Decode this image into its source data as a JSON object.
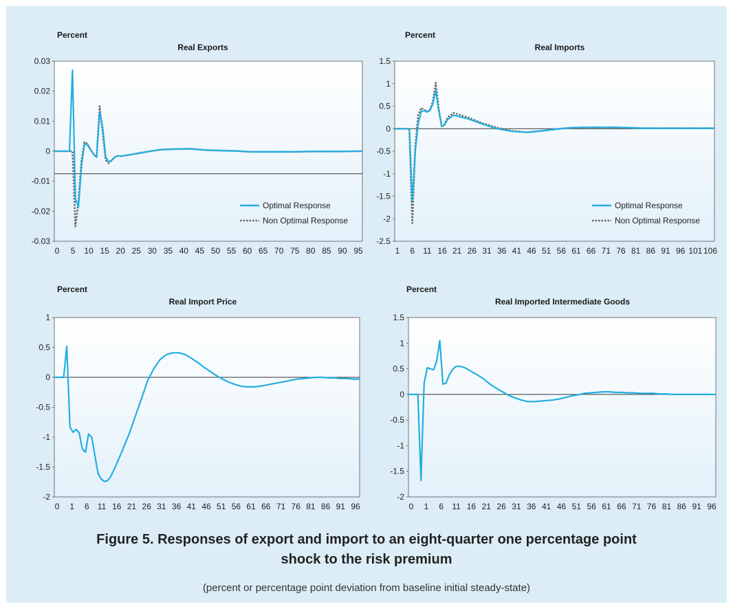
{
  "figure": {
    "title_line1": "Figure 5.  Responses of export and import to an eight-quarter one percentage point",
    "title_line2": "shock to the risk premium",
    "subtitle": "(percent or percentage point deviation from baseline initial steady-state)"
  },
  "colors": {
    "optimal": "#22aee0",
    "non_optimal": "#666666",
    "background": "#dcedf7",
    "plot_gradient_top": "#ffffff",
    "plot_gradient_bottom": "#e3f1fa"
  },
  "chart_data": [
    {
      "type": "line",
      "title": "Real Exports",
      "ylabel": "Percent",
      "ylim": [
        -0.03,
        0.03
      ],
      "yticks": [
        "0.03",
        "0.02",
        "0.01",
        "0",
        "-0.01",
        "-0.02",
        "-0.03"
      ],
      "xlim": [
        -5,
        97
      ],
      "xticks": [
        "0",
        "5",
        "10",
        "15",
        "20",
        "25",
        "30",
        "35",
        "40",
        "45",
        "50",
        "55",
        "60",
        "65",
        "70",
        "75",
        "80",
        "85",
        "90",
        "95"
      ],
      "reference_line": -0.0075,
      "legend": "lower-right",
      "series": [
        {
          "name": "Optimal Response",
          "style": "solid",
          "x": [
            -5,
            0,
            1,
            2,
            3,
            4,
            5,
            6,
            7,
            8,
            9,
            10,
            11,
            12,
            13,
            14,
            15,
            16,
            17,
            18,
            20,
            25,
            30,
            35,
            40,
            45,
            50,
            55,
            60,
            65,
            70,
            75,
            80,
            85,
            90,
            95,
            97
          ],
          "y": [
            0,
            0,
            0.027,
            -0.016,
            -0.0185,
            -0.005,
            0.0025,
            0.002,
            0.0005,
            -0.001,
            -0.002,
            0.013,
            0.008,
            -0.002,
            -0.0035,
            -0.003,
            -0.002,
            -0.0015,
            -0.0017,
            -0.0015,
            -0.0012,
            -0.0003,
            0.0005,
            0.0007,
            0.0008,
            0.0004,
            0.0002,
            0.0001,
            -0.0002,
            -0.0002,
            -0.0002,
            -0.0002,
            -0.0001,
            -0.0001,
            -0.0001,
            0,
            0
          ]
        },
        {
          "name": "Non Optimal Response",
          "style": "dotted",
          "x": [
            -5,
            0,
            1,
            2,
            3,
            4,
            5,
            6,
            7,
            8,
            9,
            10,
            11,
            12,
            13,
            14,
            15,
            16,
            17,
            18,
            20,
            25,
            30,
            35,
            40,
            45,
            50,
            55,
            60,
            65,
            70,
            75,
            80,
            85,
            90,
            95,
            97
          ],
          "y": [
            0,
            0,
            0,
            -0.025,
            -0.017,
            -0.003,
            0.003,
            0.0025,
            0.0005,
            -0.001,
            -0.002,
            0.015,
            0.006,
            -0.003,
            -0.004,
            -0.003,
            -0.002,
            -0.0015,
            -0.0017,
            -0.0015,
            -0.0012,
            -0.0003,
            0.0005,
            0.0007,
            0.0008,
            0.0004,
            0.0002,
            0.0001,
            -0.0002,
            -0.0002,
            -0.0002,
            -0.0002,
            -0.0001,
            -0.0001,
            -0.0001,
            0,
            0
          ]
        }
      ]
    },
    {
      "type": "line",
      "title": "Real Imports",
      "ylabel": "Percent",
      "ylim": [
        -2.5,
        1.5
      ],
      "yticks": [
        "1.5",
        "1",
        "0.5",
        "0",
        "-0.5",
        "-1",
        "-1.5",
        "-2",
        "-2.5"
      ],
      "xlim": [
        1,
        110
      ],
      "xticks": [
        "1",
        "6",
        "11",
        "16",
        "21",
        "26",
        "31",
        "36",
        "41",
        "46",
        "51",
        "56",
        "61",
        "66",
        "71",
        "76",
        "81",
        "86",
        "91",
        "96",
        "101",
        "106"
      ],
      "reference_line": 0,
      "legend": "lower-right",
      "series": [
        {
          "name": "Optimal Response",
          "style": "solid",
          "x": [
            1,
            4,
            6,
            7,
            8,
            9,
            10,
            11,
            12,
            13,
            14,
            15,
            16,
            17,
            18,
            19,
            21,
            26,
            31,
            36,
            41,
            46,
            51,
            56,
            61,
            66,
            71,
            76,
            81,
            86,
            91,
            96,
            101,
            106,
            110
          ],
          "y": [
            0,
            0,
            0,
            -1.6,
            -0.5,
            0.1,
            0.38,
            0.4,
            0.37,
            0.4,
            0.55,
            0.85,
            0.4,
            0.05,
            0.08,
            0.2,
            0.3,
            0.22,
            0.1,
            0,
            -0.06,
            -0.08,
            -0.05,
            -0.01,
            0.02,
            0.03,
            0.03,
            0.03,
            0.02,
            0.01,
            0.01,
            0.01,
            0.01,
            0.01,
            0.01
          ]
        },
        {
          "name": "Non Optimal Response",
          "style": "dotted",
          "x": [
            1,
            4,
            6,
            7,
            8,
            9,
            10,
            11,
            12,
            13,
            14,
            15,
            16,
            17,
            18,
            19,
            21,
            26,
            31,
            36,
            41,
            46,
            51,
            56,
            61,
            66,
            71,
            76,
            81,
            86,
            91,
            96,
            101,
            106,
            110
          ],
          "y": [
            0,
            0,
            0,
            -2.1,
            -0.4,
            0.3,
            0.46,
            0.42,
            0.38,
            0.42,
            0.6,
            1.02,
            0.45,
            0.06,
            0.1,
            0.25,
            0.35,
            0.25,
            0.12,
            0.02,
            -0.05,
            -0.08,
            -0.05,
            -0.01,
            0.02,
            0.03,
            0.03,
            0.03,
            0.02,
            0.01,
            0.01,
            0.01,
            0.01,
            0.01,
            0.01
          ]
        }
      ]
    },
    {
      "type": "line",
      "title": "Real Import Price",
      "ylabel": "Percent",
      "ylim": [
        -2,
        1
      ],
      "yticks": [
        "1",
        "0.5",
        "0",
        "-0.5",
        "-1",
        "-1.5",
        "-2"
      ],
      "xlim": [
        0,
        98
      ],
      "xticks": [
        "0",
        "1",
        "6",
        "11",
        "16",
        "21",
        "26",
        "31",
        "36",
        "41",
        "46",
        "51",
        "56",
        "61",
        "66",
        "71",
        "76",
        "81",
        "86",
        "91",
        "96"
      ],
      "reference_line": 0,
      "series": [
        {
          "name": "",
          "style": "solid",
          "x": [
            0,
            1,
            3,
            4,
            5,
            6,
            7,
            8,
            9,
            10,
            11,
            12,
            13,
            14,
            15,
            16,
            17,
            18,
            20,
            22,
            24,
            26,
            28,
            30,
            32,
            34,
            36,
            38,
            40,
            42,
            44,
            46,
            48,
            50,
            52,
            54,
            56,
            58,
            60,
            62,
            64,
            66,
            68,
            70,
            72,
            74,
            76,
            78,
            80,
            82,
            84,
            86,
            88,
            90,
            92,
            94,
            96,
            98
          ],
          "y": [
            0,
            0,
            0,
            0.52,
            -0.83,
            -0.92,
            -0.87,
            -0.93,
            -1.2,
            -1.25,
            -0.95,
            -1,
            -1.3,
            -1.6,
            -1.7,
            -1.74,
            -1.73,
            -1.67,
            -1.45,
            -1.2,
            -0.95,
            -0.65,
            -0.35,
            -0.05,
            0.15,
            0.3,
            0.38,
            0.41,
            0.41,
            0.38,
            0.32,
            0.25,
            0.17,
            0.1,
            0.03,
            -0.03,
            -0.08,
            -0.12,
            -0.15,
            -0.16,
            -0.16,
            -0.15,
            -0.13,
            -0.11,
            -0.09,
            -0.07,
            -0.05,
            -0.03,
            -0.02,
            -0.01,
            0,
            0,
            -0.01,
            -0.01,
            -0.02,
            -0.02,
            -0.03,
            -0.03
          ]
        }
      ]
    },
    {
      "type": "line",
      "title": "Real Imported Intermediate Goods",
      "ylabel": "Percent",
      "ylim": [
        -2,
        1.5
      ],
      "yticks": [
        "1.5",
        "1",
        "0.5",
        "0",
        "-0.5",
        "-1",
        "-1.5",
        "-2"
      ],
      "xlim": [
        0,
        98
      ],
      "xticks": [
        "0",
        "1",
        "6",
        "11",
        "16",
        "21",
        "26",
        "31",
        "36",
        "41",
        "46",
        "51",
        "56",
        "61",
        "66",
        "71",
        "76",
        "81",
        "86",
        "91",
        "96"
      ],
      "reference_line": 0,
      "series": [
        {
          "name": "",
          "style": "solid",
          "x": [
            0,
            1,
            3,
            4,
            5,
            6,
            7,
            8,
            9,
            10,
            11,
            12,
            13,
            14,
            15,
            16,
            17,
            18,
            20,
            22,
            24,
            26,
            28,
            30,
            32,
            34,
            36,
            38,
            40,
            42,
            44,
            46,
            48,
            50,
            52,
            54,
            56,
            58,
            60,
            62,
            64,
            66,
            68,
            70,
            72,
            74,
            76,
            78,
            80,
            82,
            84,
            86,
            88,
            90,
            92,
            94,
            96,
            98
          ],
          "y": [
            0,
            0,
            0,
            -1.68,
            0.22,
            0.52,
            0.5,
            0.48,
            0.65,
            1.05,
            0.2,
            0.22,
            0.38,
            0.48,
            0.54,
            0.55,
            0.54,
            0.52,
            0.45,
            0.38,
            0.3,
            0.2,
            0.12,
            0.05,
            -0.02,
            -0.07,
            -0.11,
            -0.14,
            -0.14,
            -0.13,
            -0.12,
            -0.11,
            -0.09,
            -0.06,
            -0.03,
            -0.01,
            0.02,
            0.03,
            0.04,
            0.05,
            0.05,
            0.04,
            0.04,
            0.03,
            0.03,
            0.02,
            0.02,
            0.02,
            0.01,
            0.01,
            0,
            0,
            0,
            0,
            0,
            0,
            0,
            0
          ]
        }
      ]
    }
  ]
}
